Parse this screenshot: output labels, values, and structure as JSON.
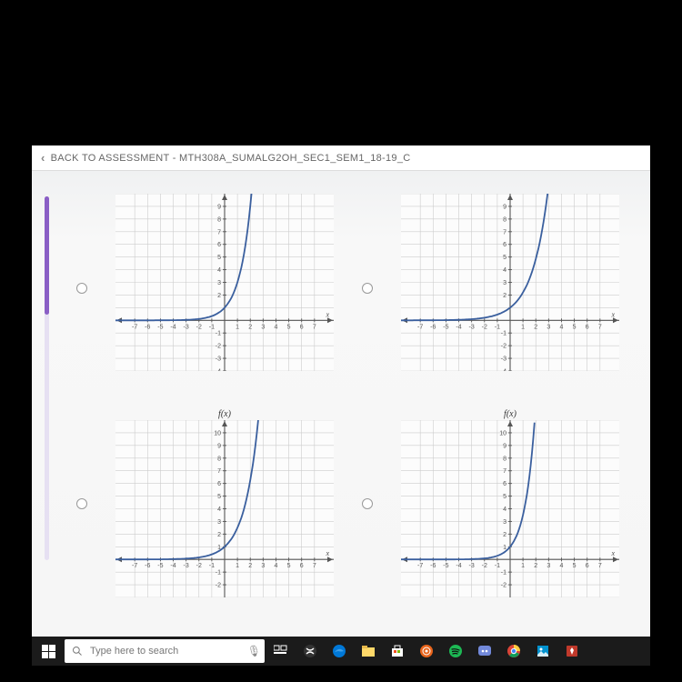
{
  "header": {
    "back_label": "BACK TO ASSESSMENT - MTH308A_SUMALG2OH_SEC1_SEM1_18-19_C"
  },
  "search": {
    "placeholder": "Type here to search"
  },
  "graphs": {
    "top_xticks": [
      -7,
      -6,
      -5,
      -4,
      -3,
      -2,
      -1,
      1,
      2,
      3,
      4,
      5,
      6,
      7
    ],
    "top_yticks": [
      -4,
      -3,
      -2,
      -1,
      2,
      3,
      4,
      5,
      6,
      7,
      8,
      9
    ],
    "bot_xticks": [
      -7,
      -6,
      -5,
      -4,
      -3,
      -2,
      -1,
      1,
      2,
      3,
      4,
      5,
      6,
      7
    ],
    "bot_yticks": [
      -2,
      -1,
      1,
      2,
      3,
      4,
      5,
      6,
      7,
      8,
      9,
      10
    ],
    "flabel": "f(x)",
    "xlabel": "x",
    "top_yrange": [
      -4,
      10
    ],
    "bot_yrange": [
      -3,
      11
    ],
    "xrange": [
      -8.5,
      8.5
    ],
    "grid_color": "#cccccc",
    "axis_color": "#555555",
    "curve_color": "#3a5f9e",
    "bg_color": "#fcfcfc",
    "curves": {
      "A": {
        "type": "exp",
        "a": 1,
        "b": 3,
        "shift": 0
      },
      "B": {
        "type": "exp",
        "a": 1,
        "b": 2.2,
        "shift": 0
      },
      "C": {
        "type": "exp",
        "a": 1,
        "b": 2.5,
        "shift": 0,
        "asym": 0
      },
      "D": {
        "type": "exp",
        "a": 1,
        "b": 3.5,
        "shift": 0,
        "asym": 0
      }
    }
  }
}
